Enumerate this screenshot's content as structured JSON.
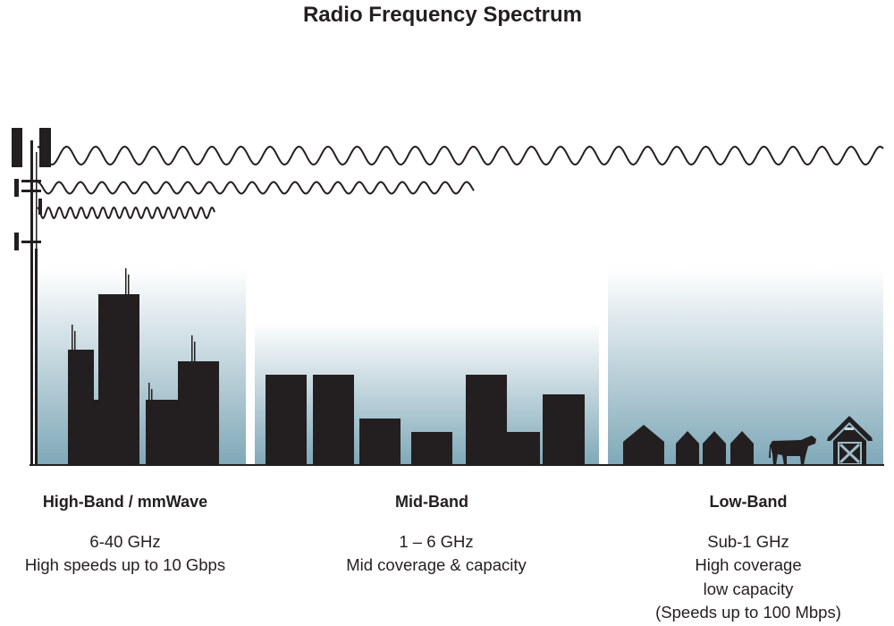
{
  "title": "Radio Frequency Spectrum",
  "colors": {
    "silhouette": "#231f20",
    "sky_top": "#ffffff",
    "sky_bottom": "#7fa8b8"
  },
  "bands": [
    {
      "name": "High-Band / mmWave",
      "lines": [
        "6-40 GHz",
        "High speeds up to 10 Gbps"
      ]
    },
    {
      "name": "Mid-Band",
      "lines": [
        "1 – 6 GHz",
        "Mid coverage & capacity"
      ]
    },
    {
      "name": "Low-Band",
      "lines": [
        "Sub-1 GHz",
        "High coverage",
        "low capacity",
        "(Speeds up to 100 Mbps)"
      ]
    }
  ],
  "icons": [
    "cell-tower-icon",
    "radio-wave-icon",
    "city-skyline-icon",
    "suburb-buildings-icon",
    "house-icon",
    "cow-icon",
    "barn-icon"
  ]
}
